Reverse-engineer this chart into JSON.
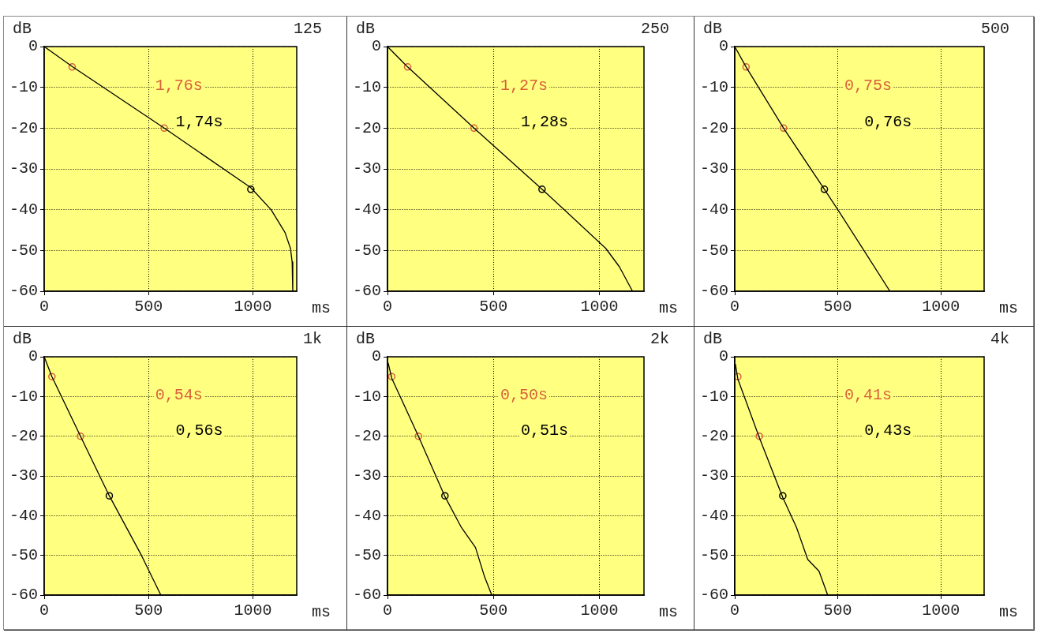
{
  "chart_data": [
    {
      "type": "line",
      "title": "125",
      "xlabel": "ms",
      "ylabel": "dB",
      "xlim": [
        0,
        1210
      ],
      "ylim": [
        -60,
        0
      ],
      "xticks": [
        0,
        500,
        1000
      ],
      "yticks": [
        0,
        -10,
        -20,
        -30,
        -40,
        -50,
        -60
      ],
      "grid": true,
      "annotations": [
        "1,76s",
        "1,74s"
      ],
      "series": [
        {
          "type": "line",
          "color": "#000000",
          "marker": "none",
          "x": [
            0,
            134,
            575,
            990,
            1087,
            1154,
            1180,
            1188,
            1191
          ],
          "values": [
            0,
            -4.9,
            -20,
            -34.6,
            -40,
            -45.6,
            -49.5,
            -52.8,
            -60
          ]
        },
        {
          "type": "scatter",
          "color": "#d9603a",
          "marker": "circle",
          "x": [
            134,
            575
          ],
          "values": [
            -5,
            -20
          ]
        },
        {
          "type": "scatter",
          "color": "#000000",
          "marker": "circle",
          "x": [
            990
          ],
          "values": [
            -35
          ]
        }
      ]
    },
    {
      "type": "line",
      "title": "250",
      "xlabel": "ms",
      "ylabel": "dB",
      "xlim": [
        0,
        1210
      ],
      "ylim": [
        -60,
        0
      ],
      "xticks": [
        0,
        500,
        1000
      ],
      "yticks": [
        0,
        -10,
        -20,
        -30,
        -40,
        -50,
        -60
      ],
      "grid": true,
      "annotations": [
        "1,27s",
        "1,28s"
      ],
      "series": [
        {
          "type": "line",
          "color": "#000000",
          "marker": "none",
          "x": [
            0,
            95,
            408,
            729,
            834,
            1030,
            1094,
            1156
          ],
          "values": [
            0,
            -5,
            -20,
            -35,
            -40,
            -49.5,
            -54,
            -60
          ]
        },
        {
          "type": "scatter",
          "color": "#d9603a",
          "marker": "circle",
          "x": [
            95,
            408
          ],
          "values": [
            -5,
            -20
          ]
        },
        {
          "type": "scatter",
          "color": "#000000",
          "marker": "circle",
          "x": [
            729
          ],
          "values": [
            -35
          ]
        }
      ]
    },
    {
      "type": "line",
      "title": "500",
      "xlabel": "ms",
      "ylabel": "dB",
      "xlim": [
        0,
        1210
      ],
      "ylim": [
        -60,
        0
      ],
      "xticks": [
        0,
        500,
        1000
      ],
      "yticks": [
        0,
        -10,
        -20,
        -30,
        -40,
        -50,
        -60
      ],
      "grid": true,
      "annotations": [
        "0,75s",
        "0,76s"
      ],
      "series": [
        {
          "type": "line",
          "color": "#000000",
          "marker": "none",
          "x": [
            0,
            55,
            237,
            435,
            500,
            627,
            753
          ],
          "values": [
            0,
            -5,
            -20,
            -35,
            -40,
            -50,
            -60
          ]
        },
        {
          "type": "scatter",
          "color": "#d9603a",
          "marker": "circle",
          "x": [
            55,
            237
          ],
          "values": [
            -5,
            -20
          ]
        },
        {
          "type": "scatter",
          "color": "#000000",
          "marker": "circle",
          "x": [
            435
          ],
          "values": [
            -35
          ]
        }
      ]
    },
    {
      "type": "line",
      "title": "1k",
      "xlabel": "ms",
      "ylabel": "dB",
      "xlim": [
        0,
        1210
      ],
      "ylim": [
        -60,
        0
      ],
      "xticks": [
        0,
        500,
        1000
      ],
      "yticks": [
        0,
        -10,
        -20,
        -30,
        -40,
        -50,
        -60
      ],
      "grid": true,
      "annotations": [
        "0,54s",
        "0,56s"
      ],
      "series": [
        {
          "type": "line",
          "color": "#000000",
          "marker": "none",
          "x": [
            0,
            37,
            174,
            312,
            466,
            559
          ],
          "values": [
            0,
            -5,
            -20,
            -35,
            -50,
            -60
          ]
        },
        {
          "type": "scatter",
          "color": "#d9603a",
          "marker": "circle",
          "x": [
            37,
            174
          ],
          "values": [
            -5,
            -20
          ]
        },
        {
          "type": "scatter",
          "color": "#000000",
          "marker": "circle",
          "x": [
            312
          ],
          "values": [
            -35
          ]
        }
      ]
    },
    {
      "type": "line",
      "title": "2k",
      "xlabel": "ms",
      "ylabel": "dB",
      "xlim": [
        0,
        1210
      ],
      "ylim": [
        -60,
        0
      ],
      "xticks": [
        0,
        500,
        1000
      ],
      "yticks": [
        0,
        -10,
        -20,
        -30,
        -40,
        -50,
        -60
      ],
      "grid": true,
      "annotations": [
        "0,50s",
        "0,51s"
      ],
      "series": [
        {
          "type": "line",
          "color": "#000000",
          "marker": "none",
          "x": [
            3,
            20,
            146,
            271,
            349,
            415,
            458,
            492
          ],
          "values": [
            -1.5,
            -5.4,
            -20,
            -35.2,
            -43,
            -48,
            -55.4,
            -60
          ]
        },
        {
          "type": "scatter",
          "color": "#d9603a",
          "marker": "circle",
          "x": [
            20,
            146
          ],
          "values": [
            -5,
            -20
          ]
        },
        {
          "type": "scatter",
          "color": "#000000",
          "marker": "circle",
          "x": [
            271
          ],
          "values": [
            -35
          ]
        }
      ]
    },
    {
      "type": "line",
      "title": "4k",
      "xlabel": "ms",
      "ylabel": "dB",
      "xlim": [
        0,
        1210
      ],
      "ylim": [
        -60,
        0
      ],
      "xticks": [
        0,
        500,
        1000
      ],
      "yticks": [
        0,
        -10,
        -20,
        -30,
        -40,
        -50,
        -60
      ],
      "grid": true,
      "annotations": [
        "0,41s",
        "0,43s"
      ],
      "series": [
        {
          "type": "line",
          "color": "#000000",
          "marker": "none",
          "x": [
            3,
            15,
            119,
            233,
            300,
            354,
            409,
            451
          ],
          "values": [
            -1.8,
            -5.6,
            -20.3,
            -35.4,
            -43,
            -51,
            -54,
            -60
          ]
        },
        {
          "type": "scatter",
          "color": "#d9603a",
          "marker": "circle",
          "x": [
            15,
            119
          ],
          "values": [
            -5,
            -20
          ]
        },
        {
          "type": "scatter",
          "color": "#000000",
          "marker": "circle",
          "x": [
            233
          ],
          "values": [
            -35
          ]
        }
      ]
    }
  ]
}
